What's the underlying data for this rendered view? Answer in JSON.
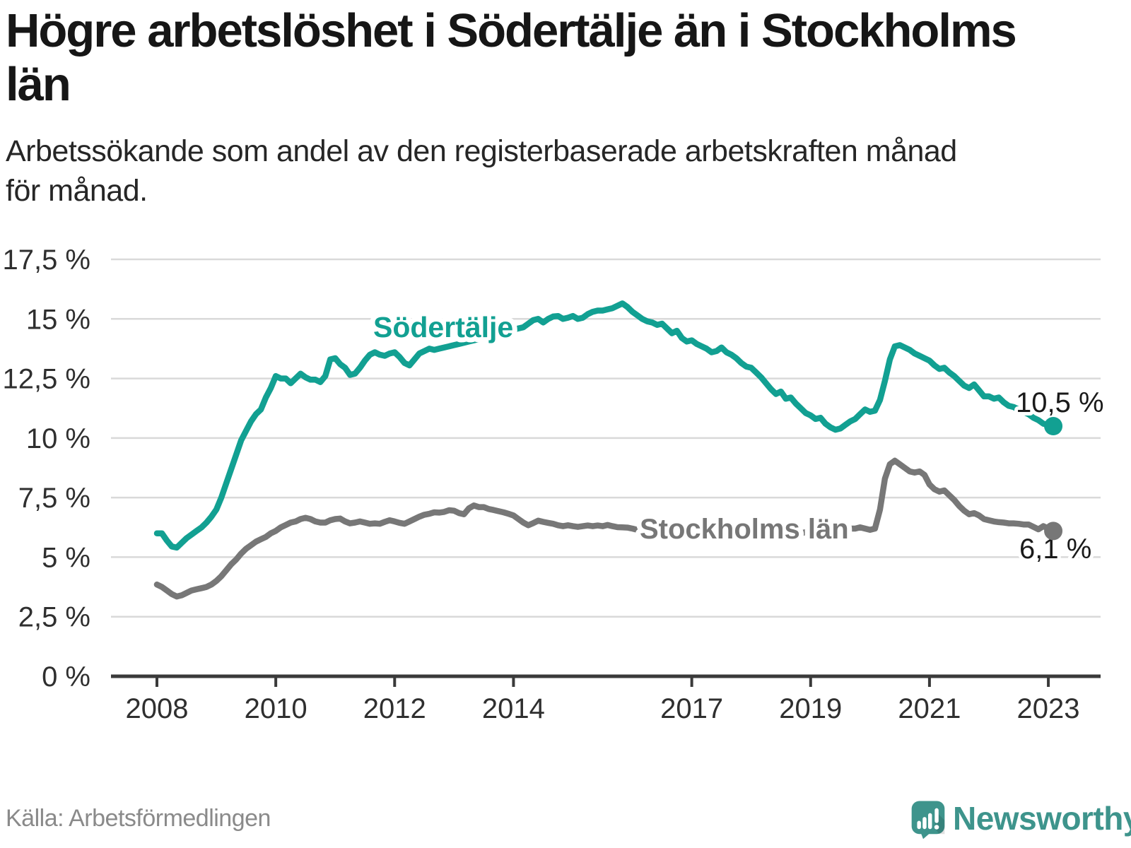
{
  "header": {
    "title_lines": [
      "Högre arbetslöshet i Södertälje än i Stockholms",
      "län"
    ],
    "subtitle_lines": [
      "Arbetssökande som andel av den registerbaserade arbetskraften månad",
      "för månad."
    ]
  },
  "footer": {
    "source": "Källa: Arbetsförmedlingen",
    "logo_text": "Newsworthy"
  },
  "colors": {
    "sodertalje": "#12a092",
    "stockholm": "#777777",
    "axis": "#3a3a3a",
    "grid": "#d9d9d9",
    "tick_text": "#2f2f2f",
    "value_text": "#1a1a1a",
    "muted_text": "#8a8a8a",
    "logo": "#3e948c",
    "background": "#ffffff"
  },
  "chart_data": {
    "type": "line",
    "frequency": "monthly",
    "start_year": 2008,
    "start_month": 1,
    "grid": true,
    "ylim": [
      0,
      17.5
    ],
    "xlabel": "",
    "ylabel": "",
    "x_ticks": [
      {
        "year": 2008,
        "label": "2008"
      },
      {
        "year": 2010,
        "label": "2010"
      },
      {
        "year": 2012,
        "label": "2012"
      },
      {
        "year": 2014,
        "label": "2014"
      },
      {
        "year": 2017,
        "label": "2017"
      },
      {
        "year": 2019,
        "label": "2019"
      },
      {
        "year": 2021,
        "label": "2021"
      },
      {
        "year": 2023,
        "label": "2023"
      }
    ],
    "y_ticks": [
      {
        "value": 0,
        "label": "0 %"
      },
      {
        "value": 2.5,
        "label": "2,5 %"
      },
      {
        "value": 5,
        "label": "5 %"
      },
      {
        "value": 7.5,
        "label": "7,5 %"
      },
      {
        "value": 10,
        "label": "10 %"
      },
      {
        "value": 12.5,
        "label": "12,5 %"
      },
      {
        "value": 15,
        "label": "15 %"
      },
      {
        "value": 17.5,
        "label": "17,5 %"
      }
    ],
    "series": [
      {
        "name": "Södertälje",
        "end_label": "10,5 %",
        "last_value": 10.5,
        "values": [
          6.0,
          6.0,
          5.7,
          5.45,
          5.4,
          5.6,
          5.8,
          5.95,
          6.1,
          6.25,
          6.45,
          6.7,
          7.0,
          7.5,
          8.1,
          8.7,
          9.3,
          9.9,
          10.3,
          10.7,
          11.0,
          11.2,
          11.7,
          12.1,
          12.6,
          12.5,
          12.5,
          12.3,
          12.5,
          12.7,
          12.55,
          12.45,
          12.45,
          12.35,
          12.6,
          13.3,
          13.35,
          13.1,
          12.95,
          12.65,
          12.7,
          12.95,
          13.25,
          13.5,
          13.6,
          13.5,
          13.45,
          13.55,
          13.6,
          13.4,
          13.15,
          13.05,
          13.3,
          13.55,
          13.65,
          13.75,
          13.7,
          13.75,
          13.8,
          13.85,
          13.9,
          13.95,
          14.0,
          14.05,
          14.1,
          14.15,
          14.2,
          14.25,
          14.3,
          14.35,
          14.4,
          14.5,
          14.55,
          14.6,
          14.65,
          14.8,
          14.95,
          15.0,
          14.85,
          15.0,
          15.1,
          15.12,
          15.0,
          15.05,
          15.12,
          15.0,
          15.05,
          15.2,
          15.3,
          15.35,
          15.35,
          15.4,
          15.45,
          15.55,
          15.65,
          15.5,
          15.3,
          15.15,
          15.0,
          14.9,
          14.85,
          14.75,
          14.8,
          14.6,
          14.4,
          14.5,
          14.2,
          14.05,
          14.1,
          13.95,
          13.85,
          13.75,
          13.6,
          13.65,
          13.8,
          13.6,
          13.5,
          13.35,
          13.15,
          13.0,
          12.95,
          12.75,
          12.55,
          12.3,
          12.05,
          11.85,
          11.95,
          11.65,
          11.7,
          11.45,
          11.25,
          11.05,
          10.95,
          10.8,
          10.85,
          10.6,
          10.45,
          10.35,
          10.4,
          10.55,
          10.7,
          10.8,
          11.0,
          11.2,
          11.1,
          11.15,
          11.6,
          12.4,
          13.3,
          13.85,
          13.9,
          13.8,
          13.7,
          13.55,
          13.45,
          13.35,
          13.25,
          13.05,
          12.9,
          12.95,
          12.75,
          12.6,
          12.4,
          12.2,
          12.1,
          12.25,
          12.0,
          11.75,
          11.75,
          11.65,
          11.7,
          11.5,
          11.35,
          11.3,
          11.2,
          11.1,
          11.0,
          10.85,
          10.75,
          10.6,
          10.55,
          10.5
        ]
      },
      {
        "name": "Stockholms län",
        "end_label": "6,1 %",
        "last_value": 6.1,
        "values": [
          3.85,
          3.75,
          3.6,
          3.45,
          3.35,
          3.4,
          3.5,
          3.6,
          3.65,
          3.7,
          3.75,
          3.85,
          4.0,
          4.2,
          4.45,
          4.7,
          4.9,
          5.15,
          5.35,
          5.5,
          5.65,
          5.75,
          5.85,
          6.0,
          6.1,
          6.25,
          6.35,
          6.45,
          6.5,
          6.6,
          6.65,
          6.6,
          6.5,
          6.45,
          6.45,
          6.55,
          6.6,
          6.62,
          6.5,
          6.42,
          6.45,
          6.5,
          6.45,
          6.4,
          6.42,
          6.4,
          6.48,
          6.55,
          6.5,
          6.44,
          6.4,
          6.5,
          6.6,
          6.7,
          6.78,
          6.82,
          6.88,
          6.87,
          6.9,
          6.97,
          6.95,
          6.85,
          6.8,
          7.05,
          7.17,
          7.1,
          7.1,
          7.02,
          6.98,
          6.93,
          6.88,
          6.82,
          6.75,
          6.6,
          6.45,
          6.34,
          6.43,
          6.53,
          6.48,
          6.44,
          6.4,
          6.34,
          6.3,
          6.34,
          6.3,
          6.27,
          6.3,
          6.33,
          6.3,
          6.33,
          6.3,
          6.35,
          6.3,
          6.26,
          6.25,
          6.24,
          6.2,
          6.15,
          6.1,
          6.1,
          6.05,
          6.05,
          6.1,
          6.05,
          6.0,
          6.0,
          6.05,
          6.05,
          6.05,
          6.0,
          6.0,
          5.95,
          5.95,
          6.0,
          6.05,
          6.0,
          5.95,
          5.95,
          6.0,
          6.05,
          6.05,
          6.05,
          6.0,
          6.0,
          5.95,
          5.95,
          6.0,
          5.95,
          5.9,
          5.95,
          6.0,
          6.05,
          6.05,
          6.05,
          6.05,
          6.05,
          6.1,
          6.1,
          6.15,
          6.15,
          6.2,
          6.2,
          6.25,
          6.2,
          6.15,
          6.2,
          7.0,
          8.3,
          8.9,
          9.05,
          8.9,
          8.75,
          8.6,
          8.55,
          8.6,
          8.45,
          8.05,
          7.85,
          7.75,
          7.8,
          7.6,
          7.4,
          7.15,
          6.95,
          6.8,
          6.85,
          6.75,
          6.6,
          6.55,
          6.5,
          6.47,
          6.45,
          6.42,
          6.42,
          6.4,
          6.37,
          6.37,
          6.27,
          6.17,
          6.3,
          6.2,
          6.1
        ]
      }
    ]
  }
}
